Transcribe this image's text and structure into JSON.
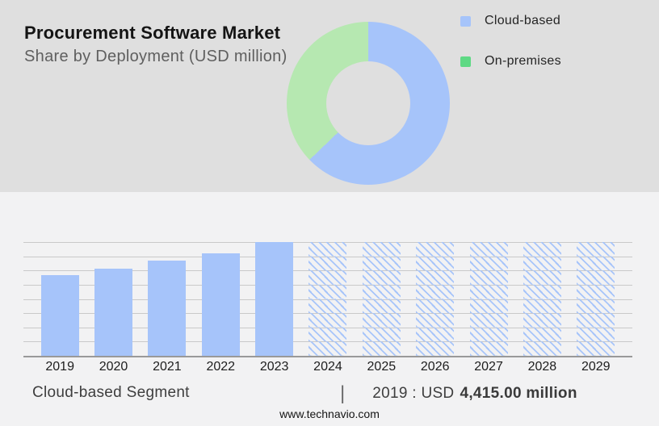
{
  "header": {
    "title": "Procurement Software Market",
    "subtitle": "Share by Deployment (USD million)"
  },
  "hero": {
    "background": "#dfdfdf",
    "legend": [
      {
        "label": "Cloud-based",
        "swatch_color": "#a6c4fa"
      },
      {
        "label": "On-premises",
        "swatch_color": "#5ed984"
      }
    ]
  },
  "chart_data": [
    {
      "type": "pie",
      "subtype": "donut",
      "labels": [
        "Cloud-based",
        "On-premises"
      ],
      "values_pct_est": [
        62.8,
        37.2
      ],
      "colors": [
        "#a6c4fa",
        "#b6e8b1"
      ],
      "start_angle_deg": 0,
      "direction": "clockwise",
      "legend_position": "right",
      "note": "segment shares estimated from pixel angles; no numeric labels shown"
    },
    {
      "type": "bar",
      "categories": [
        "2019",
        "2020",
        "2021",
        "2022",
        "2023",
        "2024",
        "2025",
        "2026",
        "2027",
        "2028",
        "2029"
      ],
      "values_est_usd_million": [
        4415,
        4780,
        5200,
        5630,
        6230,
        null,
        null,
        null,
        null,
        null,
        null
      ],
      "height_fracs": [
        0.709,
        0.768,
        0.835,
        0.904,
        1.0,
        1.0,
        1.0,
        1.0,
        1.0,
        1.0,
        1.0
      ],
      "bar_styles": [
        "solid",
        "solid",
        "solid",
        "solid",
        "solid",
        "hatched",
        "hatched",
        "hatched",
        "hatched",
        "hatched",
        "hatched"
      ],
      "bar_color": "#a6c4fa",
      "hatch_style": "diagonal backslash stripes, forecast placeholder bars at full chart height",
      "known_point": {
        "category": "2019",
        "value_usd_million": 4415.0
      },
      "gridline_count": 9,
      "grid": true,
      "xlabel": "",
      "ylabel": "",
      "y_axis_labels_shown": false
    }
  ],
  "footer": {
    "segment_label": "Cloud-based Segment",
    "separator": "|",
    "value_prefix": "2019 : USD",
    "value_bold": "4,415.00 million",
    "website": "www.technavio.com"
  }
}
